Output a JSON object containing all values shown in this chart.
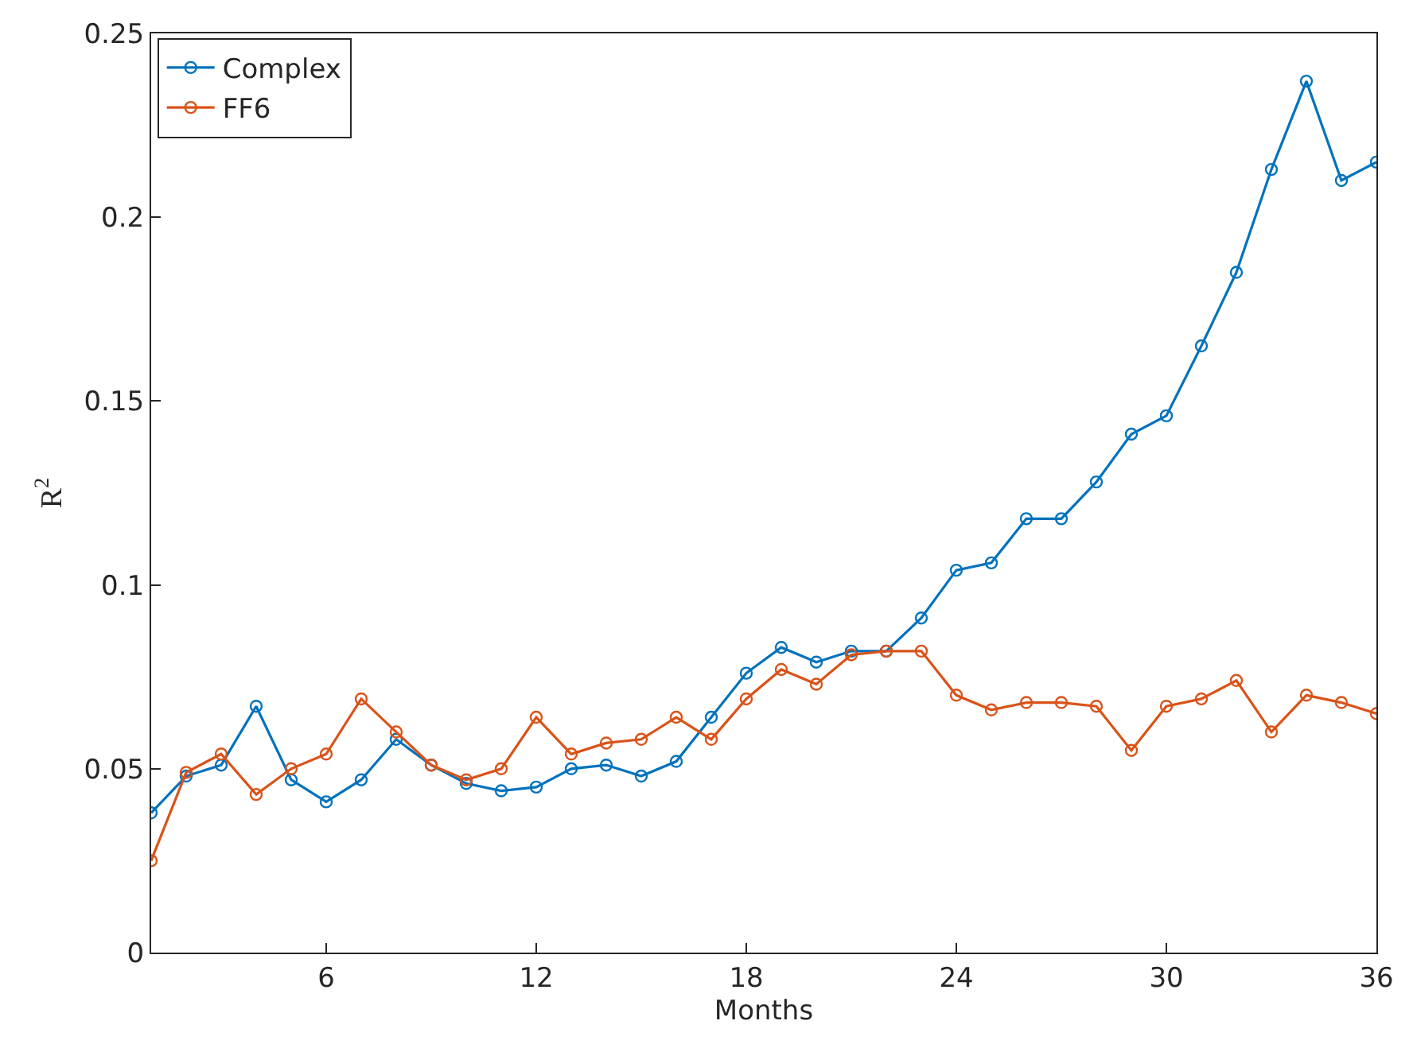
{
  "chart_data": {
    "type": "line",
    "xlabel": "Months",
    "ylabel": "R$^{2}$",
    "x": [
      1,
      2,
      3,
      4,
      5,
      6,
      7,
      8,
      9,
      10,
      11,
      12,
      13,
      14,
      15,
      16,
      17,
      18,
      19,
      20,
      21,
      22,
      23,
      24,
      25,
      26,
      27,
      28,
      29,
      30,
      31,
      32,
      33,
      34,
      35,
      36
    ],
    "series": [
      {
        "name": "Complex",
        "color": "#0072bd",
        "values": [
          0.038,
          0.048,
          0.051,
          0.067,
          0.047,
          0.041,
          0.047,
          0.058,
          0.051,
          0.046,
          0.044,
          0.045,
          0.05,
          0.051,
          0.048,
          0.052,
          0.064,
          0.076,
          0.083,
          0.079,
          0.082,
          0.082,
          0.091,
          0.104,
          0.106,
          0.118,
          0.118,
          0.128,
          0.141,
          0.146,
          0.165,
          0.185,
          0.213,
          0.237,
          0.21,
          0.215
        ]
      },
      {
        "name": "FF6",
        "color": "#d95319",
        "values": [
          0.025,
          0.049,
          0.054,
          0.043,
          0.05,
          0.054,
          0.069,
          0.06,
          0.051,
          0.047,
          0.05,
          0.064,
          0.054,
          0.057,
          0.058,
          0.064,
          0.058,
          0.069,
          0.077,
          0.073,
          0.081,
          0.082,
          0.082,
          0.07,
          0.066,
          0.068,
          0.068,
          0.067,
          0.055,
          0.067,
          0.069,
          0.074,
          0.06,
          0.07,
          0.068,
          0.065
        ]
      }
    ],
    "xlim": [
      1,
      36
    ],
    "xticks": [
      6,
      12,
      18,
      24,
      30,
      36
    ],
    "ylim": [
      0,
      0.25
    ],
    "yticks": [
      0,
      0.05,
      0.1,
      0.15,
      0.2,
      0.25
    ],
    "legend": "top left",
    "marker": "circle",
    "line_style": "solid"
  }
}
